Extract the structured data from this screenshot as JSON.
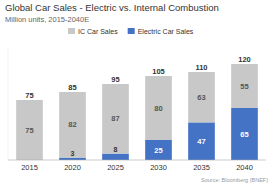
{
  "chart_data": {
    "type": "bar",
    "stacked": true,
    "title": "Global Car Sales - Electric vs. Internal Combustion",
    "subtitle": "Million units, 2015-2040E",
    "annotations": [
      "Source: Bloomberg (BNEF)"
    ],
    "categories": [
      "2015",
      "2020",
      "2025",
      "2030",
      "2035",
      "2040"
    ],
    "series": [
      {
        "name": "Electric Car Sales",
        "color": "#4472c4",
        "values": [
          0,
          3,
          8,
          25,
          47,
          65
        ]
      },
      {
        "name": "IC Car Sales",
        "color": "#c8c8c8",
        "values": [
          75,
          82,
          87,
          80,
          63,
          55
        ]
      }
    ],
    "totals": [
      75,
      85,
      95,
      105,
      110,
      120
    ],
    "ylim": [
      0,
      140
    ],
    "grid": false,
    "legend": "top",
    "data_labels": true,
    "tick_labels": "x"
  }
}
